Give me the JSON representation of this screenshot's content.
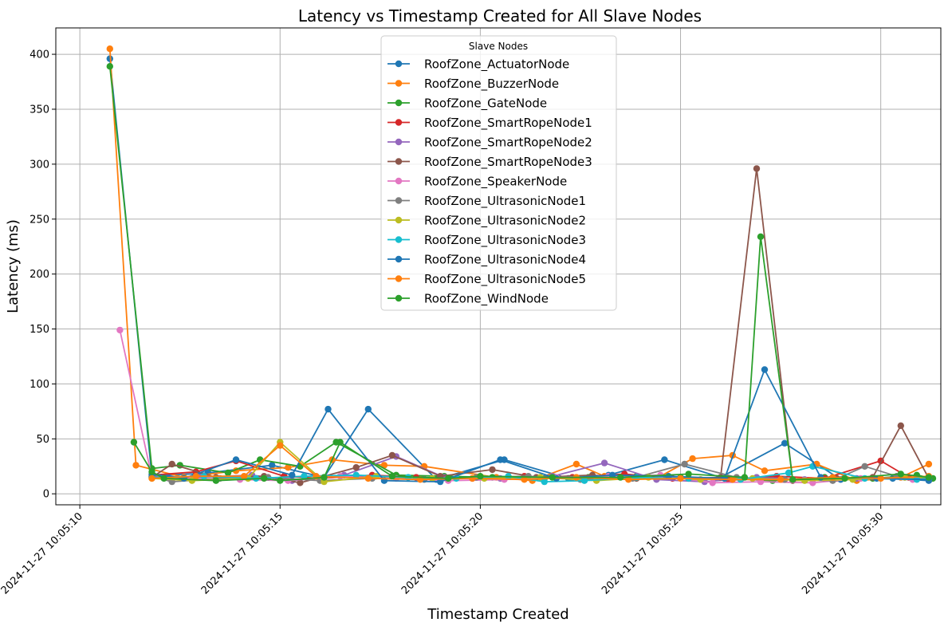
{
  "chart_data": {
    "type": "line",
    "title": "Latency vs Timestamp Created for All Slave Nodes",
    "xlabel": "Timestamp Created",
    "ylabel": "Latency (ms)",
    "xlim": [
      9.4,
      31.5
    ],
    "ylim": [
      -10,
      424
    ],
    "grid": true,
    "legend": {
      "title": "Slave Nodes",
      "placement": "upper center"
    },
    "x_ticks": [
      10,
      15,
      20,
      25,
      30
    ],
    "x_tick_labels": [
      "2024-11-27 10:05:10",
      "2024-11-27 10:05:15",
      "2024-11-27 10:05:20",
      "2024-11-27 10:05:25",
      "2024-11-27 10:05:30"
    ],
    "y_ticks": [
      0,
      50,
      100,
      150,
      200,
      250,
      300,
      350,
      400
    ],
    "x_unit_note": "x values are seconds after 10:05:00",
    "series": [
      {
        "name": "RoofZone_ActuatorNode",
        "color": "#1f77b4",
        "x": [
          10.75,
          11.8,
          13.2,
          14.8,
          16.1,
          17.2,
          18.9,
          20.6,
          22.2,
          23.2,
          24.6,
          26.0,
          27.6,
          29.0,
          30.3,
          31.2
        ],
        "y": [
          396,
          16,
          19,
          26,
          15,
          77,
          13,
          31,
          14,
          17,
          31,
          15,
          46,
          13,
          14,
          12
        ]
      },
      {
        "name": "RoofZone_BuzzerNode",
        "color": "#ff7f0e",
        "x": [
          10.75,
          11.4,
          12.6,
          13.9,
          15.2,
          16.3,
          17.6,
          18.6,
          20.4,
          21.3,
          22.4,
          23.1,
          24.4,
          25.3,
          26.3,
          27.1,
          28.4,
          29.4,
          30.5,
          31.2
        ],
        "y": [
          405,
          26,
          15,
          21,
          24,
          31,
          26,
          25,
          15,
          12,
          27,
          16,
          14,
          32,
          35,
          21,
          27,
          12,
          15,
          27
        ]
      },
      {
        "name": "RoofZone_GateNode",
        "color": "#2ca02c",
        "x": [
          10.75,
          11.8,
          12.5,
          13.7,
          14.5,
          15.5,
          16.4,
          17.9,
          19.1,
          20.3,
          21.6,
          22.7,
          23.9,
          25.0,
          26.1,
          27.3,
          28.6,
          29.8,
          30.9,
          31.3
        ],
        "y": [
          389,
          23,
          26,
          19,
          31,
          25,
          47,
          17,
          16,
          15,
          14,
          15,
          16,
          15,
          14,
          12,
          15,
          14,
          17,
          14
        ]
      },
      {
        "name": "RoofZone_SmartRopeNode1",
        "color": "#d62728",
        "x": [
          11.8,
          12.9,
          13.9,
          15.1,
          16.0,
          17.3,
          18.4,
          19.8,
          21.1,
          22.3,
          23.6,
          24.8,
          26.2,
          27.4,
          28.6,
          30.0,
          30.7,
          31.2
        ],
        "y": [
          17,
          20,
          30,
          16,
          14,
          17,
          15,
          14,
          16,
          15,
          18,
          14,
          13,
          16,
          14,
          30,
          15,
          14
        ]
      },
      {
        "name": "RoofZone_SmartRopeNode2",
        "color": "#9467bd",
        "x": [
          11.8,
          13.0,
          14.3,
          15.3,
          16.6,
          17.9,
          19.1,
          20.5,
          21.8,
          23.1,
          24.4,
          25.6,
          26.9,
          28.1,
          29.4,
          30.6,
          31.2
        ],
        "y": [
          16,
          15,
          17,
          12,
          17,
          34,
          15,
          14,
          16,
          28,
          13,
          11,
          15,
          13,
          14,
          15,
          13
        ]
      },
      {
        "name": "RoofZone_SmartRopeNode3",
        "color": "#8c564b",
        "x": [
          11.8,
          12.3,
          13.4,
          14.6,
          15.5,
          16.9,
          17.8,
          19.0,
          20.3,
          21.4,
          22.8,
          23.9,
          25.2,
          26.0,
          26.9,
          27.8,
          28.9,
          29.8,
          30.5,
          31.2
        ],
        "y": [
          15,
          27,
          15,
          16,
          10,
          24,
          35,
          16,
          22,
          15,
          17,
          14,
          14,
          15,
          296,
          12,
          14,
          15,
          62,
          14
        ]
      },
      {
        "name": "RoofZone_SpeakerNode",
        "color": "#e377c2",
        "x": [
          11.0,
          11.8,
          12.8,
          14.0,
          15.2,
          16.5,
          17.9,
          19.2,
          20.6,
          21.9,
          23.2,
          24.5,
          25.8,
          27.0,
          28.3,
          29.5,
          30.8,
          31.2
        ],
        "y": [
          149,
          15,
          14,
          13,
          12,
          16,
          14,
          12,
          13,
          15,
          16,
          17,
          10,
          11,
          10,
          14,
          13,
          15
        ]
      },
      {
        "name": "RoofZone_UltrasonicNode1",
        "color": "#7f7f7f",
        "x": [
          11.8,
          12.3,
          13.5,
          14.7,
          16.0,
          17.3,
          18.6,
          19.9,
          21.2,
          22.5,
          23.8,
          25.1,
          26.4,
          27.6,
          28.8,
          29.6,
          30.4,
          31.2
        ],
        "y": [
          16,
          11,
          14,
          15,
          12,
          14,
          13,
          15,
          16,
          13,
          14,
          27,
          15,
          13,
          12,
          25,
          16,
          14
        ]
      },
      {
        "name": "RoofZone_UltrasonicNode2",
        "color": "#bcbd22",
        "x": [
          11.8,
          12.8,
          14.2,
          15.0,
          16.1,
          17.4,
          18.8,
          20.1,
          21.5,
          22.9,
          24.2,
          25.5,
          26.8,
          28.1,
          29.3,
          30.6,
          31.2
        ],
        "y": [
          14,
          12,
          14,
          47,
          11,
          16,
          14,
          14,
          15,
          12,
          15,
          13,
          14,
          12,
          13,
          15,
          14
        ]
      },
      {
        "name": "RoofZone_UltrasonicNode3",
        "color": "#17becf",
        "x": [
          11.8,
          13.1,
          14.4,
          15.6,
          16.9,
          18.2,
          19.4,
          20.7,
          21.6,
          22.6,
          23.9,
          25.2,
          26.5,
          27.7,
          28.3,
          29.6,
          30.9,
          31.2
        ],
        "y": [
          15,
          16,
          14,
          16,
          17,
          15,
          14,
          16,
          11,
          12,
          15,
          14,
          13,
          19,
          25,
          14,
          13,
          14
        ]
      },
      {
        "name": "RoofZone_UltrasonicNode4",
        "color": "#1f77b4",
        "x": [
          11.8,
          12.6,
          13.9,
          15.3,
          16.2,
          17.6,
          19.0,
          20.5,
          21.9,
          23.3,
          24.7,
          26.1,
          27.1,
          28.5,
          29.9,
          31.2
        ],
        "y": [
          18,
          14,
          31,
          17,
          77,
          12,
          11,
          31,
          14,
          17,
          16,
          14,
          113,
          15,
          14,
          13
        ]
      },
      {
        "name": "RoofZone_UltrasonicNode5",
        "color": "#ff7f0e",
        "x": [
          11.8,
          12.9,
          14.1,
          15.0,
          15.9,
          17.2,
          18.5,
          19.8,
          21.1,
          22.4,
          23.7,
          25.0,
          26.3,
          27.5,
          28.8,
          30.0,
          31.2
        ],
        "y": [
          14,
          16,
          16,
          44,
          16,
          14,
          13,
          14,
          13,
          15,
          13,
          14,
          13,
          13,
          15,
          14,
          16
        ]
      },
      {
        "name": "RoofZone_WindNode",
        "color": "#2ca02c",
        "x": [
          11.35,
          11.8,
          12.1,
          13.4,
          14.6,
          15.0,
          16.1,
          16.5,
          17.8,
          19.2,
          20.0,
          21.8,
          23.5,
          25.2,
          26.6,
          27.0,
          27.8,
          29.1,
          30.5,
          31.2
        ],
        "y": [
          47,
          20,
          14,
          12,
          14,
          12,
          15,
          47,
          16,
          14,
          16,
          15,
          15,
          18,
          15,
          234,
          13,
          14,
          18,
          15
        ]
      }
    ]
  }
}
